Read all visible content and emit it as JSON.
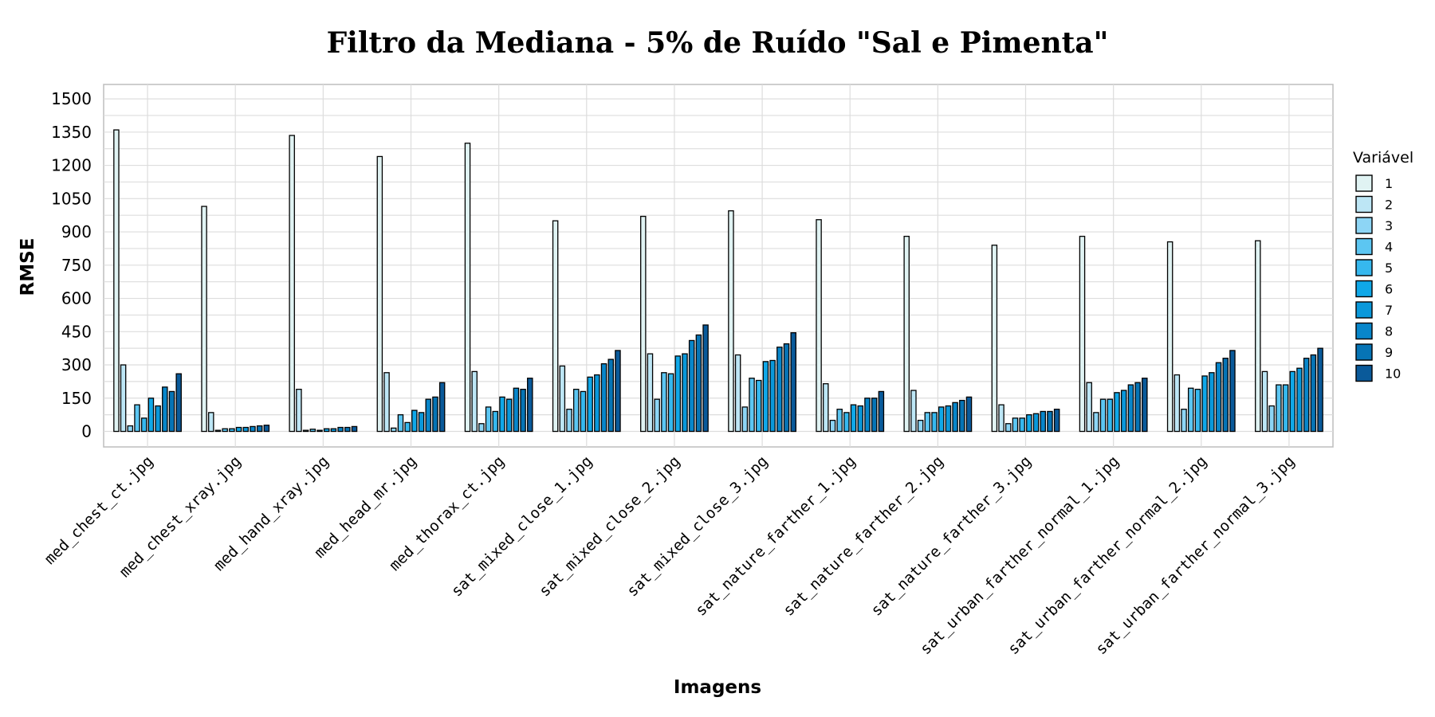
{
  "chart_data": {
    "type": "bar",
    "title": "Filtro da Mediana - 5% de Ruído \"Sal e Pimenta\"",
    "xlabel": "Imagens",
    "ylabel": "RMSE",
    "ylim": [
      -70,
      1565
    ],
    "yticks": [
      0,
      150,
      300,
      450,
      600,
      750,
      900,
      1050,
      1200,
      1350,
      1500
    ],
    "grid": true,
    "legend_title": "Variável",
    "legend_position": "right",
    "categories": [
      "med_chest_ct.jpg",
      "med_chest_xray.jpg",
      "med_hand_xray.jpg",
      "med_head_mr.jpg",
      "med_thorax_ct.jpg",
      "sat_mixed_close_1.jpg",
      "sat_mixed_close_2.jpg",
      "sat_mixed_close_3.jpg",
      "sat_nature_farther_1.jpg",
      "sat_nature_farther_2.jpg",
      "sat_nature_farther_3.jpg",
      "sat_urban_farther_normal_1.jpg",
      "sat_urban_farther_normal_2.jpg",
      "sat_urban_farther_normal_3.jpg"
    ],
    "series": [
      {
        "name": "1",
        "color": "#e0f3f3",
        "values": [
          1360,
          1015,
          1335,
          1240,
          1300,
          950,
          970,
          995,
          955,
          880,
          840,
          880,
          855,
          860
        ]
      },
      {
        "name": "2",
        "color": "#bde6f5",
        "values": [
          300,
          85,
          190,
          265,
          270,
          295,
          350,
          345,
          215,
          185,
          120,
          220,
          255,
          270
        ]
      },
      {
        "name": "3",
        "color": "#8dd5f5",
        "values": [
          25,
          5,
          5,
          15,
          35,
          100,
          145,
          110,
          50,
          50,
          35,
          85,
          100,
          115
        ]
      },
      {
        "name": "4",
        "color": "#5cc6f2",
        "values": [
          120,
          12,
          10,
          75,
          110,
          190,
          265,
          240,
          100,
          85,
          60,
          145,
          195,
          210
        ]
      },
      {
        "name": "5",
        "color": "#36b8ee",
        "values": [
          60,
          12,
          5,
          40,
          90,
          180,
          260,
          230,
          85,
          85,
          60,
          145,
          190,
          210
        ]
      },
      {
        "name": "6",
        "color": "#10a8e8",
        "values": [
          150,
          18,
          12,
          95,
          155,
          245,
          340,
          315,
          120,
          110,
          75,
          175,
          250,
          270
        ]
      },
      {
        "name": "7",
        "color": "#0a98da",
        "values": [
          115,
          18,
          12,
          85,
          145,
          255,
          350,
          320,
          115,
          115,
          80,
          185,
          265,
          285
        ]
      },
      {
        "name": "8",
        "color": "#0886ca",
        "values": [
          200,
          22,
          18,
          145,
          195,
          305,
          410,
          380,
          150,
          130,
          90,
          210,
          310,
          330
        ]
      },
      {
        "name": "9",
        "color": "#0674b5",
        "values": [
          180,
          25,
          18,
          155,
          190,
          325,
          435,
          395,
          150,
          140,
          90,
          220,
          330,
          345
        ]
      },
      {
        "name": "10",
        "color": "#0a5a9a",
        "values": [
          260,
          28,
          22,
          220,
          240,
          365,
          480,
          445,
          180,
          155,
          100,
          240,
          365,
          375
        ]
      }
    ]
  }
}
